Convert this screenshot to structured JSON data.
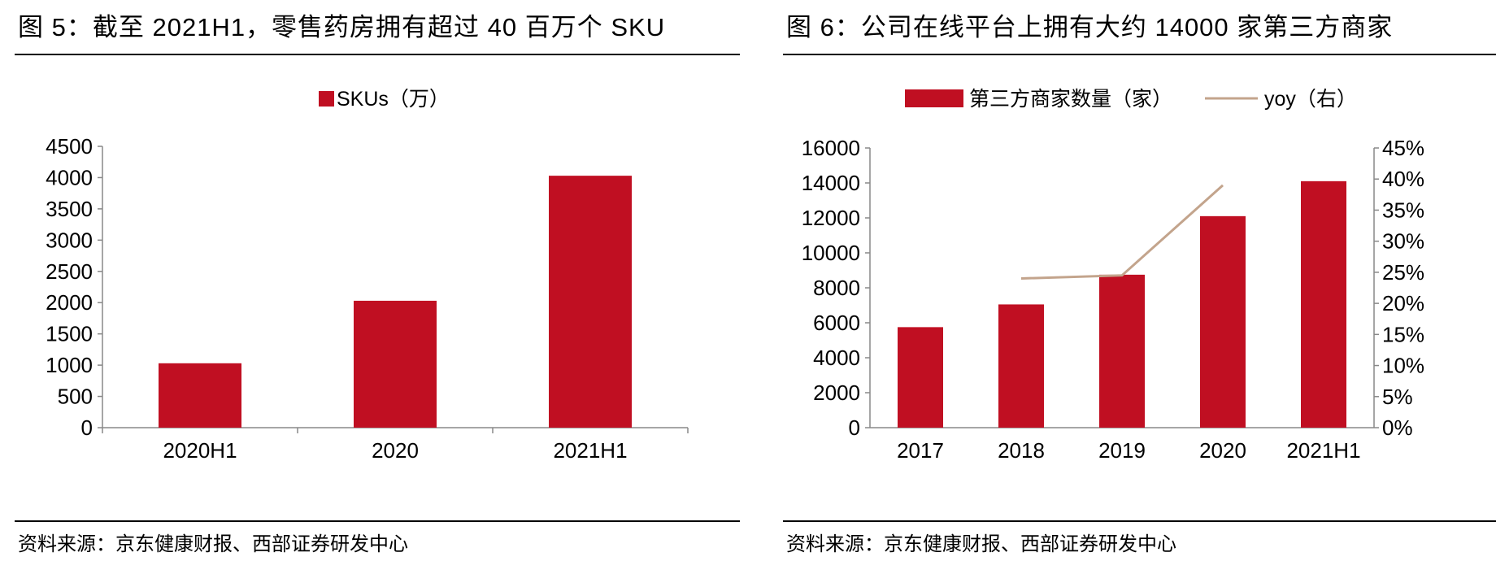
{
  "left": {
    "figure_title": "图 5：截至 2021H1，零售药房拥有超过 40 百万个 SKU",
    "source": "资料来源：京东健康财报、西部证券研发中心"
  },
  "right": {
    "figure_title": "图 6：公司在线平台上拥有大约 14000 家第三方商家",
    "source": "资料来源：京东健康财报、西部证券研发中心"
  },
  "chart_data": [
    {
      "type": "bar",
      "categories": [
        "2020H1",
        "2020",
        "2021H1"
      ],
      "series": [
        {
          "name": "SKUs（万）",
          "values": [
            1030,
            2030,
            4030
          ],
          "color": "#c00f22"
        }
      ],
      "yticks": [
        "0",
        "500",
        "1000",
        "1500",
        "2000",
        "2500",
        "3000",
        "3500",
        "4000",
        "4500"
      ],
      "ylim": [
        0,
        4500
      ],
      "grid": false,
      "legend": "top-center"
    },
    {
      "type": "bar",
      "categories": [
        "2017",
        "2018",
        "2019",
        "2020",
        "2021H1"
      ],
      "series": [
        {
          "name": "第三方商家数量（家）",
          "values": [
            5750,
            7050,
            8750,
            12100,
            14100
          ],
          "color": "#c00f22",
          "axis": "left"
        },
        {
          "name": "yoy（右）",
          "type": "line",
          "values": [
            null,
            0.24,
            0.245,
            0.39,
            null
          ],
          "color": "#c3a48c",
          "axis": "right"
        }
      ],
      "yticks": [
        "0",
        "2000",
        "4000",
        "6000",
        "8000",
        "10000",
        "12000",
        "14000",
        "16000"
      ],
      "ylim": [
        0,
        16000
      ],
      "y2ticks": [
        "0%",
        "5%",
        "10%",
        "15%",
        "20%",
        "25%",
        "30%",
        "35%",
        "40%",
        "45%"
      ],
      "y2lim": [
        0,
        0.45
      ],
      "grid": false,
      "legend": "top-center"
    }
  ]
}
